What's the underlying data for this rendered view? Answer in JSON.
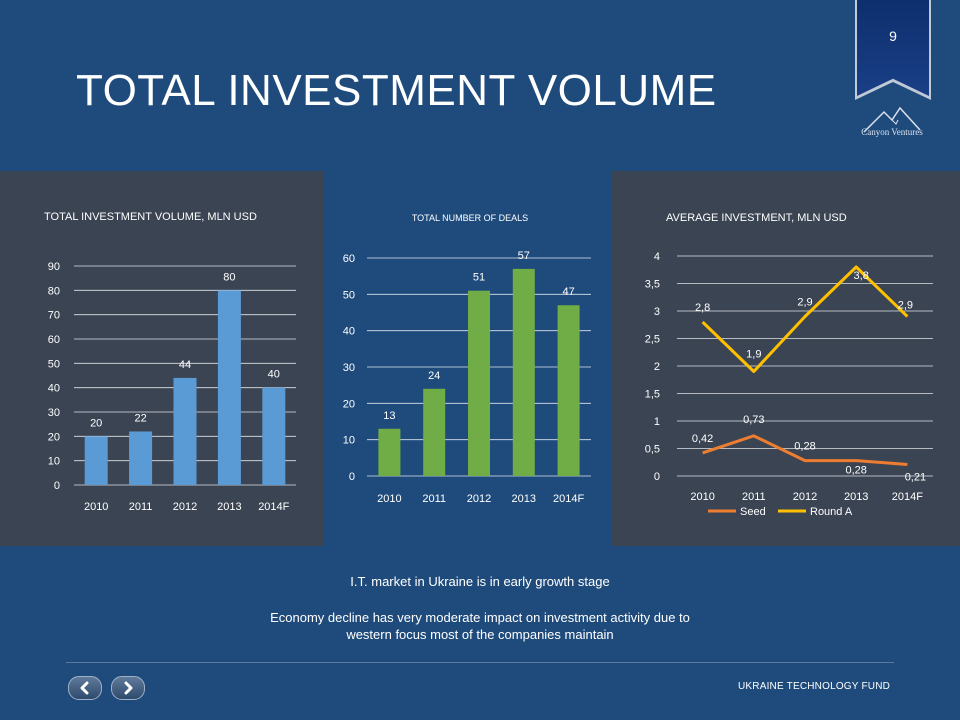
{
  "slide": {
    "page_number": "9",
    "title": "TOTAL INVESTMENT VOLUME",
    "logo_text": "Canyon Ventures",
    "notes": [
      "I.T. market in Ukraine is in early growth stage",
      "Economy decline has very moderate impact on investment activity  due to",
      "western focus most of the companies maintain"
    ],
    "footer_brand": "UKRAINE TECHNOLOGY FUND",
    "nav": {
      "prev_icon": "chevron-left-icon",
      "next_icon": "chevron-right-icon"
    }
  },
  "colors": {
    "background": "#1f4b7c",
    "panel_dark": "#3a4453",
    "bar_blue": "#5b9bd5",
    "bar_green": "#70ad47",
    "seed": "#ed7d31",
    "round_a": "#ffc000"
  },
  "chart_data": [
    {
      "type": "bar",
      "title": "TOTAL INVESTMENT VOLUME, MLN USD",
      "categories": [
        "2010",
        "2011",
        "2012",
        "2013",
        "2014F"
      ],
      "values": [
        20,
        22,
        44,
        80,
        40
      ],
      "value_labels": [
        "20",
        "22",
        "44",
        "80",
        "40"
      ],
      "ylim": [
        0,
        90
      ],
      "yticks": [
        0,
        10,
        20,
        30,
        40,
        50,
        60,
        70,
        80,
        90
      ],
      "ytick_labels": [
        "0",
        "10",
        "20",
        "30",
        "40",
        "50",
        "60",
        "70",
        "80",
        "90"
      ],
      "grid": true
    },
    {
      "type": "bar",
      "title": "TOTAL NUMBER OF DEALS",
      "categories": [
        "2010",
        "2011",
        "2012",
        "2013",
        "2014F"
      ],
      "values": [
        13,
        24,
        51,
        57,
        47
      ],
      "value_labels": [
        "13",
        "24",
        "51",
        "57",
        "47"
      ],
      "ylim": [
        0,
        60
      ],
      "yticks": [
        0,
        10,
        20,
        30,
        40,
        50,
        60
      ],
      "ytick_labels": [
        "0",
        "10",
        "20",
        "30",
        "40",
        "50",
        "60"
      ],
      "grid": true
    },
    {
      "type": "line",
      "title": "AVERAGE INVESTMENT, MLN USD",
      "categories": [
        "2010",
        "2011",
        "2012",
        "2013",
        "2014F"
      ],
      "series": [
        {
          "name": "Seed",
          "values": [
            0.42,
            0.73,
            0.28,
            0.28,
            0.21
          ],
          "value_labels": [
            "0,42",
            "0,73",
            "0,28",
            "0,28",
            "0,21"
          ]
        },
        {
          "name": "Round A",
          "values": [
            2.8,
            1.9,
            2.9,
            3.8,
            2.9
          ],
          "value_labels": [
            "2,8",
            "1,9",
            "2,9",
            "3,8",
            "2,9"
          ]
        }
      ],
      "ylim": [
        0,
        4
      ],
      "yticks": [
        0,
        0.5,
        1,
        1.5,
        2,
        2.5,
        3,
        3.5,
        4
      ],
      "ytick_labels": [
        "0",
        "0,5",
        "1",
        "1,5",
        "2",
        "2,5",
        "3",
        "3,5",
        "4"
      ],
      "grid": true,
      "legend": "bottom"
    }
  ]
}
